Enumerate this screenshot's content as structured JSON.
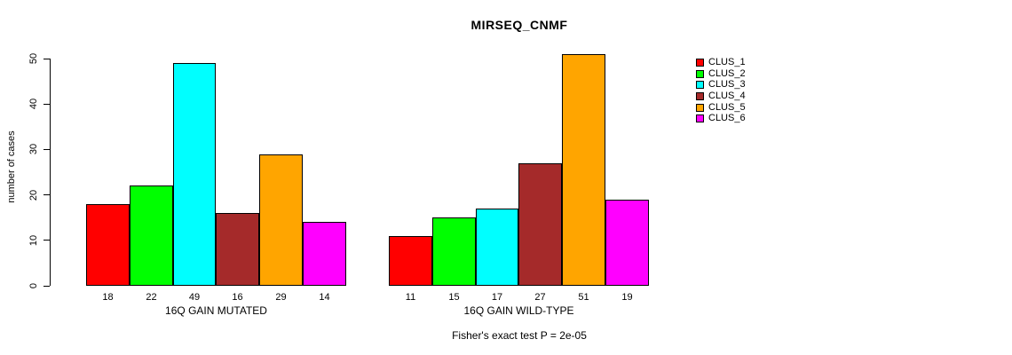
{
  "chart_data": {
    "type": "bar",
    "title": "MIRSEQ_CNMF",
    "ylabel": "number of cases",
    "ylim": [
      0,
      50
    ],
    "yticks": [
      0,
      10,
      20,
      30,
      40,
      50
    ],
    "grid": false,
    "legend_position": "right",
    "series": [
      "CLUS_1",
      "CLUS_2",
      "CLUS_3",
      "CLUS_4",
      "CLUS_5",
      "CLUS_6"
    ],
    "series_colors": [
      "#ff0000",
      "#00ff00",
      "#00ffff",
      "#a52a2a",
      "#ffa500",
      "#ff00ff"
    ],
    "groups": [
      {
        "label": "16Q GAIN MUTATED",
        "values": [
          18,
          22,
          49,
          16,
          29,
          14
        ]
      },
      {
        "label": "16Q GAIN WILD-TYPE",
        "values": [
          11,
          15,
          17,
          27,
          51,
          19
        ]
      }
    ],
    "bar_value_labels_shown": true,
    "annotation": "Fisher's exact test P = 2e-05"
  }
}
